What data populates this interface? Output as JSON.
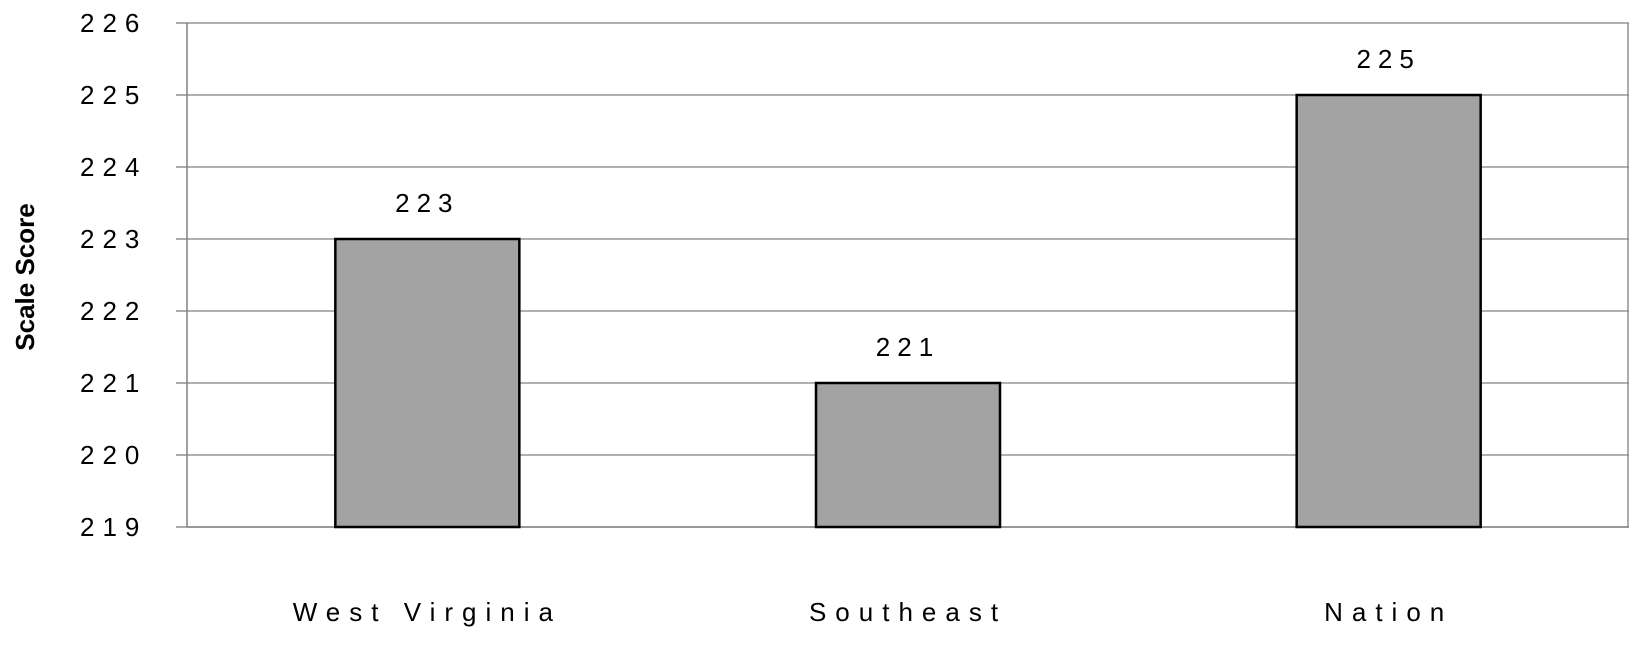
{
  "chart_data": {
    "type": "bar",
    "categories": [
      "West Virginia",
      "Southeast",
      "Nation"
    ],
    "values": [
      223,
      221,
      225
    ],
    "data_labels": [
      "223",
      "221",
      "225"
    ],
    "title": "",
    "xlabel": "",
    "ylabel": "Scale Score",
    "ylim": [
      219,
      226
    ],
    "yticks": [
      "219",
      "220",
      "221",
      "222",
      "223",
      "224",
      "225",
      "226"
    ],
    "grid": true,
    "legend": "none",
    "bar_color": "#a3a3a3"
  }
}
